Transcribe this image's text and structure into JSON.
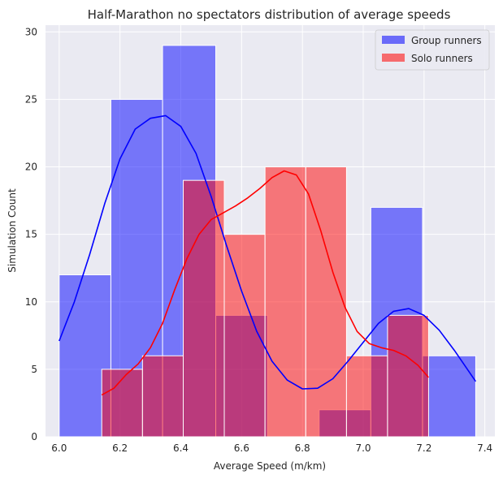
{
  "chart_data": {
    "type": "histogram",
    "title": "Half-Marathon no spectators distribution of average speeds",
    "xlabel": "Average Speed (m/km)",
    "ylabel": "Simulation Count",
    "xlim": [
      5.955,
      7.433
    ],
    "ylim": [
      0,
      30.5
    ],
    "xticks": [
      "6.0",
      "6.2",
      "6.4",
      "6.6",
      "6.8",
      "7.0",
      "7.2",
      "7.4"
    ],
    "yticks": [
      "0",
      "5",
      "10",
      "15",
      "20",
      "25",
      "30"
    ],
    "grid": true,
    "legend_position": "top-right",
    "series": [
      {
        "name": "Group runners",
        "color": "#0000ff",
        "bar_opacity": 0.5,
        "bins": [
          {
            "x0": 6.0,
            "x1": 6.17,
            "count": 12
          },
          {
            "x0": 6.17,
            "x1": 6.34,
            "count": 25
          },
          {
            "x0": 6.34,
            "x1": 6.515,
            "count": 29
          },
          {
            "x0": 6.515,
            "x1": 6.685,
            "count": 9
          },
          {
            "x0": 6.685,
            "x1": 6.855,
            "count": 0
          },
          {
            "x0": 6.855,
            "x1": 7.025,
            "count": 2
          },
          {
            "x0": 7.025,
            "x1": 7.195,
            "count": 17
          },
          {
            "x0": 7.195,
            "x1": 7.37,
            "count": 6
          }
        ],
        "kde": [
          [
            6.0,
            7.1
          ],
          [
            6.05,
            10.0
          ],
          [
            6.1,
            13.5
          ],
          [
            6.15,
            17.3
          ],
          [
            6.2,
            20.6
          ],
          [
            6.25,
            22.8
          ],
          [
            6.3,
            23.6
          ],
          [
            6.35,
            23.8
          ],
          [
            6.4,
            23.0
          ],
          [
            6.45,
            21.0
          ],
          [
            6.5,
            17.8
          ],
          [
            6.55,
            14.2
          ],
          [
            6.6,
            10.8
          ],
          [
            6.65,
            7.8
          ],
          [
            6.7,
            5.6
          ],
          [
            6.75,
            4.2
          ],
          [
            6.8,
            3.55
          ],
          [
            6.85,
            3.6
          ],
          [
            6.9,
            4.3
          ],
          [
            6.95,
            5.6
          ],
          [
            7.0,
            7.0
          ],
          [
            7.05,
            8.4
          ],
          [
            7.1,
            9.3
          ],
          [
            7.15,
            9.5
          ],
          [
            7.2,
            9.0
          ],
          [
            7.25,
            7.9
          ],
          [
            7.3,
            6.4
          ],
          [
            7.37,
            4.1
          ]
        ]
      },
      {
        "name": "Solo runners",
        "color": "#ff0000",
        "bar_opacity": 0.5,
        "bins": [
          {
            "x0": 6.14,
            "x1": 6.274,
            "count": 5
          },
          {
            "x0": 6.274,
            "x1": 6.408,
            "count": 6
          },
          {
            "x0": 6.408,
            "x1": 6.543,
            "count": 19
          },
          {
            "x0": 6.543,
            "x1": 6.677,
            "count": 15
          },
          {
            "x0": 6.677,
            "x1": 6.811,
            "count": 20
          },
          {
            "x0": 6.811,
            "x1": 6.945,
            "count": 20
          },
          {
            "x0": 6.945,
            "x1": 7.08,
            "count": 6
          },
          {
            "x0": 7.08,
            "x1": 7.215,
            "count": 9
          }
        ],
        "kde": [
          [
            6.14,
            3.1
          ],
          [
            6.18,
            3.6
          ],
          [
            6.22,
            4.6
          ],
          [
            6.26,
            5.4
          ],
          [
            6.3,
            6.6
          ],
          [
            6.34,
            8.4
          ],
          [
            6.38,
            10.9
          ],
          [
            6.42,
            13.2
          ],
          [
            6.46,
            15.0
          ],
          [
            6.5,
            16.1
          ],
          [
            6.54,
            16.6
          ],
          [
            6.58,
            17.1
          ],
          [
            6.62,
            17.7
          ],
          [
            6.66,
            18.4
          ],
          [
            6.7,
            19.2
          ],
          [
            6.74,
            19.7
          ],
          [
            6.78,
            19.4
          ],
          [
            6.82,
            18.0
          ],
          [
            6.86,
            15.3
          ],
          [
            6.9,
            12.2
          ],
          [
            6.94,
            9.6
          ],
          [
            6.98,
            7.8
          ],
          [
            7.02,
            6.9
          ],
          [
            7.06,
            6.6
          ],
          [
            7.1,
            6.4
          ],
          [
            7.14,
            6.0
          ],
          [
            7.18,
            5.3
          ],
          [
            7.215,
            4.4
          ]
        ]
      }
    ]
  }
}
